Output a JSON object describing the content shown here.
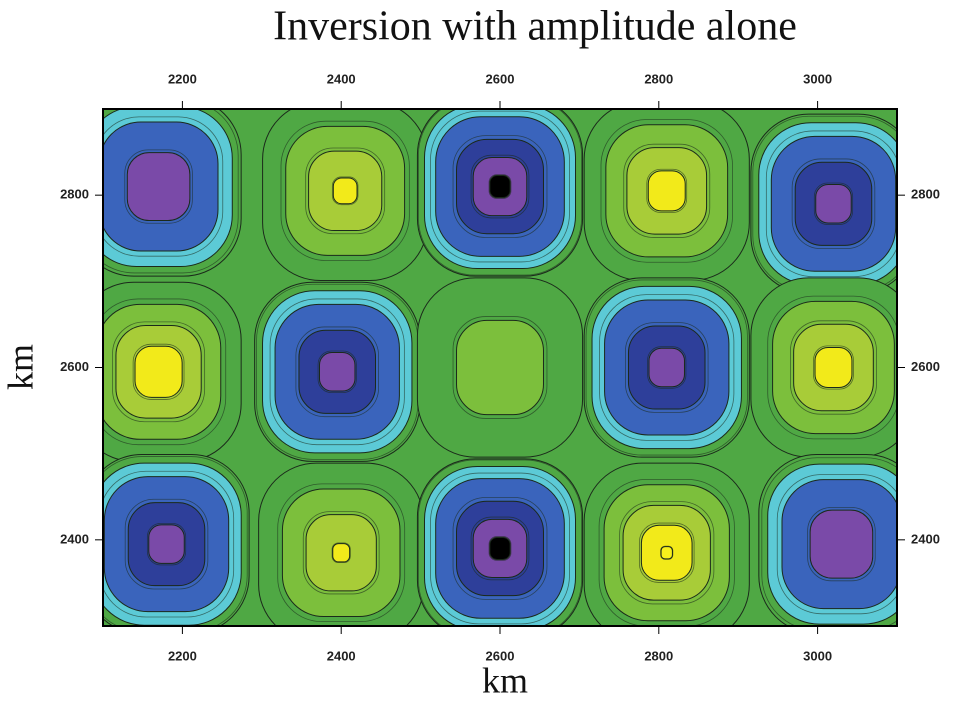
{
  "chart_data": {
    "type": "contour",
    "title": "Inversion with amplitude alone",
    "xlabel": "km",
    "ylabel": "km",
    "xlim": [
      2100,
      3100
    ],
    "ylim": [
      2300,
      2900
    ],
    "xticks": [
      2200,
      2400,
      2600,
      2800,
      3000
    ],
    "yticks": [
      2400,
      2600,
      2800
    ],
    "x": [
      2170,
      2405,
      2600,
      2810,
      3020,
      2170,
      2395,
      2600,
      2810,
      3020,
      2180,
      2400,
      2600,
      2810,
      3030
    ],
    "y": [
      2810,
      2805,
      2810,
      2805,
      2790,
      2595,
      2595,
      2600,
      2600,
      2600,
      2395,
      2385,
      2390,
      2385,
      2395
    ],
    "z": [
      -0.8,
      0.8,
      -1.0,
      0.85,
      -0.9,
      0.9,
      -0.9,
      0.5,
      -0.9,
      0.85,
      -0.9,
      0.78,
      -1.0,
      0.92,
      -0.8
    ],
    "levels": [
      -0.95,
      -0.8,
      -0.6,
      -0.3,
      -0.12,
      0.3,
      0.55,
      0.75,
      0.9
    ],
    "colors": [
      "#000000",
      "#7a4aa8",
      "#2e3f9a",
      "#3a64bc",
      "#5ccad6",
      "#4fa844",
      "#7cbf3c",
      "#a8cc38",
      "#f2ea1a",
      "#f7f01c"
    ]
  }
}
